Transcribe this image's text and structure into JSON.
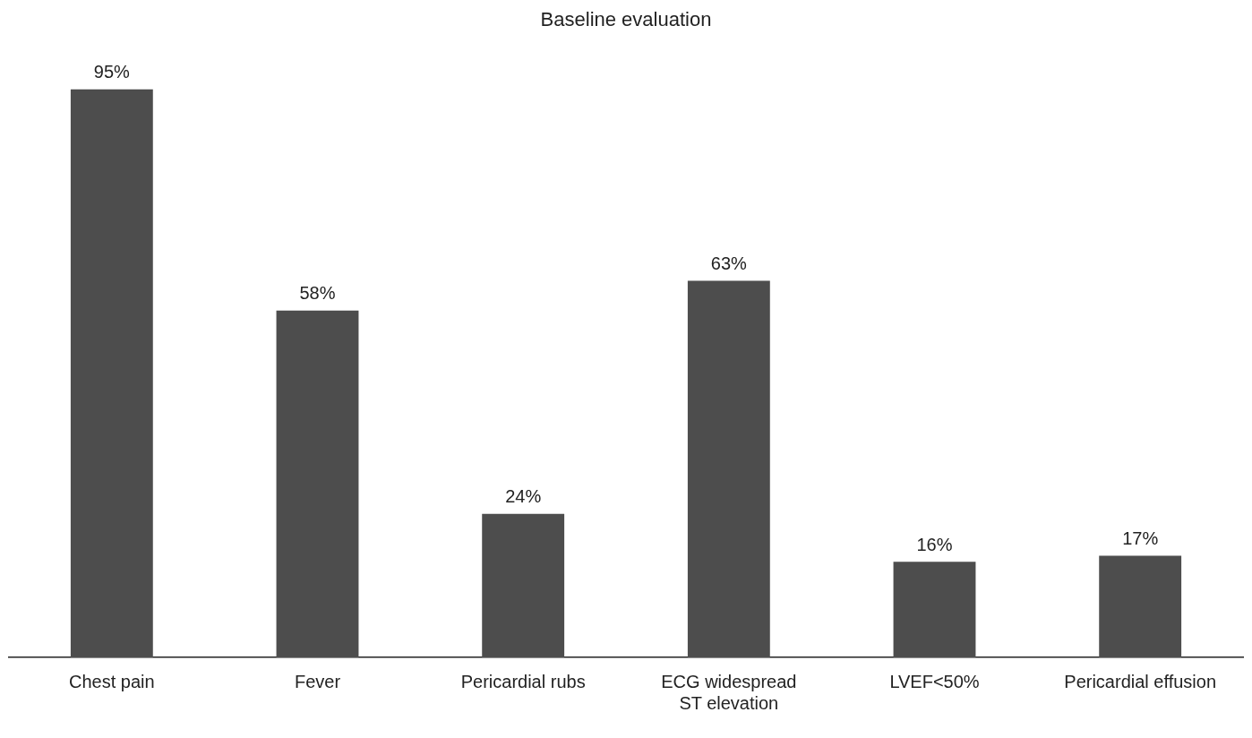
{
  "chart_data": {
    "type": "bar",
    "title": "Baseline evaluation",
    "categories": [
      "Chest pain",
      "Fever",
      "Pericardial rubs",
      "ECG widespread ST elevation",
      "LVEF<50%",
      "Pericardial effusion"
    ],
    "values": [
      95,
      58,
      24,
      63,
      16,
      17
    ],
    "color": "#4d4d4d",
    "value_labels": [
      "95%",
      "58%",
      "24%",
      "63%",
      "16%",
      "17%"
    ],
    "grid": false,
    "legend": false
  }
}
